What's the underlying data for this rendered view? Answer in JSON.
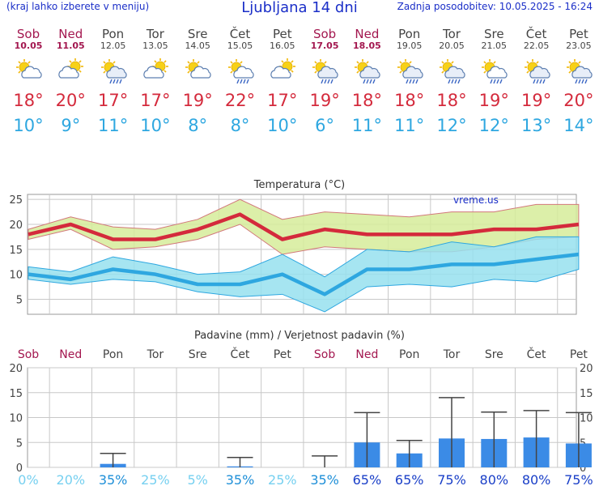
{
  "header": {
    "menu_hint": "(kraj lahko izberete v meniju)",
    "title": "Ljubljana 14 dni",
    "updated": "Zadnja posodobitev: 10.05.2025 - 16:24"
  },
  "days": [
    {
      "name": "Sob",
      "date": "10.05",
      "weekend": true,
      "icon": "partly-sunny-icon",
      "tmax": "18°",
      "tmin": "10°"
    },
    {
      "name": "Ned",
      "date": "11.05",
      "weekend": true,
      "icon": "cloudy-sun-icon",
      "tmax": "20°",
      "tmin": "9°"
    },
    {
      "name": "Pon",
      "date": "12.05",
      "weekend": false,
      "icon": "rain-shower-icon",
      "tmax": "17°",
      "tmin": "11°"
    },
    {
      "name": "Tor",
      "date": "13.05",
      "weekend": false,
      "icon": "cloudy-sun-icon",
      "tmax": "17°",
      "tmin": "10°"
    },
    {
      "name": "Sre",
      "date": "14.05",
      "weekend": false,
      "icon": "partly-sunny-icon",
      "tmax": "19°",
      "tmin": "8°"
    },
    {
      "name": "Čet",
      "date": "15.05",
      "weekend": false,
      "icon": "sun-shower-icon",
      "tmax": "22°",
      "tmin": "8°"
    },
    {
      "name": "Pet",
      "date": "16.05",
      "weekend": false,
      "icon": "cloudy-sun-icon",
      "tmax": "17°",
      "tmin": "10°"
    },
    {
      "name": "Sob",
      "date": "17.05",
      "weekend": true,
      "icon": "rain-shower-icon",
      "tmax": "19°",
      "tmin": "6°"
    },
    {
      "name": "Ned",
      "date": "18.05",
      "weekend": true,
      "icon": "rain-shower-icon",
      "tmax": "18°",
      "tmin": "11°"
    },
    {
      "name": "Pon",
      "date": "19.05",
      "weekend": false,
      "icon": "rain-shower-icon",
      "tmax": "18°",
      "tmin": "11°"
    },
    {
      "name": "Tor",
      "date": "20.05",
      "weekend": false,
      "icon": "rain-shower-icon",
      "tmax": "18°",
      "tmin": "12°"
    },
    {
      "name": "Sre",
      "date": "21.05",
      "weekend": false,
      "icon": "sun-shower-icon",
      "tmax": "19°",
      "tmin": "12°"
    },
    {
      "name": "Čet",
      "date": "22.05",
      "weekend": false,
      "icon": "rain-shower-icon",
      "tmax": "19°",
      "tmin": "13°"
    },
    {
      "name": "Pet",
      "date": "23.05",
      "weekend": false,
      "icon": "rain-shower-icon",
      "tmax": "20°",
      "tmin": "14°"
    }
  ],
  "colors": {
    "weekend": "#a3174f",
    "tmax": "#d42a3c",
    "tmin": "#2ea7e0",
    "tmax_band": "#d6ec9a",
    "tmin_band": "#96e0ee",
    "precip_bar": "#3b8be6"
  },
  "chart_data": [
    {
      "type": "line",
      "title": "Temperatura (°C)",
      "watermark": "vreme.us",
      "categories": [
        "10.05",
        "11.05",
        "12.05",
        "13.05",
        "14.05",
        "15.05",
        "16.05",
        "17.05",
        "18.05",
        "19.05",
        "20.05",
        "21.05",
        "22.05",
        "23.05"
      ],
      "ylim": [
        2,
        26
      ],
      "yticks": [
        5,
        10,
        15,
        20,
        25
      ],
      "series": [
        {
          "name": "tmax",
          "values": [
            18,
            20,
            17,
            17,
            19,
            22,
            17,
            19,
            18,
            18,
            18,
            19,
            19,
            20
          ],
          "band_high": [
            19,
            21.5,
            19.5,
            19,
            21,
            25,
            21,
            22.5,
            22,
            21.5,
            22.5,
            22.5,
            24,
            24
          ],
          "band_low": [
            17,
            19,
            15,
            15.5,
            17,
            20,
            14,
            15.5,
            15,
            14.5,
            14.5,
            15.5,
            17,
            17.5
          ]
        },
        {
          "name": "tmin",
          "values": [
            10,
            9,
            11,
            10,
            8,
            8,
            10,
            6,
            11,
            11,
            12,
            12,
            13,
            14
          ],
          "band_high": [
            11.5,
            10.5,
            13.5,
            12,
            10,
            10.5,
            14,
            9.5,
            15,
            14.5,
            16.5,
            15.5,
            17.5,
            17.5
          ],
          "band_low": [
            9,
            8,
            9,
            8.5,
            6.5,
            5.5,
            6,
            2.5,
            7.5,
            8,
            7.5,
            9,
            8.5,
            11
          ]
        }
      ],
      "grid": true
    },
    {
      "type": "bar",
      "title": "Padavine (mm) / Verjetnost padavin (%)",
      "categories": [
        "Sob",
        "Ned",
        "Pon",
        "Tor",
        "Sre",
        "Čet",
        "Pet",
        "Sob",
        "Ned",
        "Pon",
        "Tor",
        "Sre",
        "Čet",
        "Pet"
      ],
      "weekend": [
        true,
        true,
        false,
        false,
        false,
        false,
        false,
        true,
        true,
        false,
        false,
        false,
        false,
        false
      ],
      "values": [
        0,
        0,
        0.7,
        0,
        0,
        0.2,
        0,
        0,
        5,
        2.8,
        5.8,
        5.7,
        6,
        4.8
      ],
      "error_high": [
        0,
        0,
        2.8,
        0,
        0,
        2,
        0,
        2.3,
        11,
        5.4,
        14,
        11.1,
        11.4,
        11
      ],
      "probability": [
        "0%",
        "20%",
        "35%",
        "25%",
        "5%",
        "35%",
        "25%",
        "35%",
        "65%",
        "65%",
        "75%",
        "80%",
        "80%",
        "75%"
      ],
      "ylim": [
        0,
        20
      ],
      "yticks": [
        0,
        5,
        10,
        15,
        20
      ],
      "grid": true
    }
  ]
}
